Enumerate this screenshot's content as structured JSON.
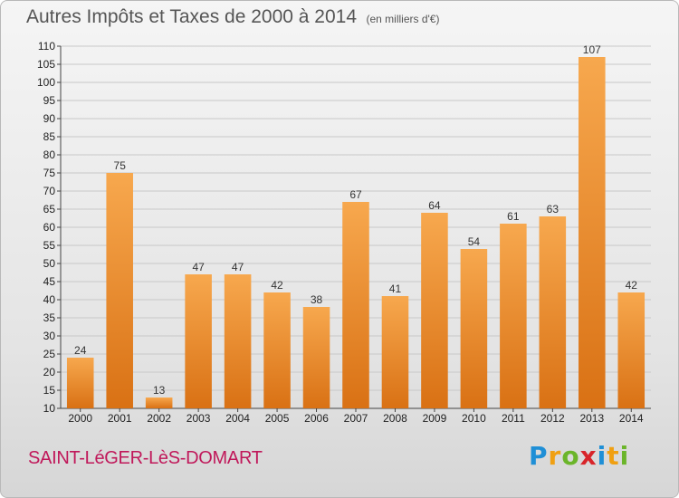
{
  "header": {
    "title": "Autres Impôts et Taxes de 2000 à 2014",
    "subtitle": "(en milliers d'€)"
  },
  "commune": "SAINT-LéGER-LèS-DOMART",
  "logo": {
    "letters": [
      "P",
      "r",
      "o",
      "x",
      "i",
      "t",
      "i"
    ],
    "colors": [
      "#1f8fd6",
      "#f0a012",
      "#6bb52a",
      "#d8252a",
      "#1f8fd6",
      "#f0a012",
      "#6bb52a"
    ]
  },
  "colors": {
    "bar_light": "#f7a84e",
    "bar_dark": "#d97114",
    "grid": "#c8c8c8"
  },
  "chart_data": {
    "type": "bar",
    "categories": [
      "2000",
      "2001",
      "2002",
      "2003",
      "2004",
      "2005",
      "2006",
      "2007",
      "2008",
      "2009",
      "2010",
      "2011",
      "2012",
      "2013",
      "2014"
    ],
    "values": [
      24,
      75,
      13,
      47,
      47,
      42,
      38,
      67,
      41,
      64,
      54,
      61,
      63,
      107,
      42
    ],
    "title": "Autres Impôts et Taxes de 2000 à 2014",
    "xlabel": "",
    "ylabel": "",
    "ylim": [
      10,
      110
    ],
    "yticks": [
      10,
      15,
      20,
      25,
      30,
      35,
      40,
      45,
      50,
      55,
      60,
      65,
      70,
      75,
      80,
      85,
      90,
      95,
      100,
      105,
      110
    ],
    "grid": true,
    "legend": "none"
  }
}
